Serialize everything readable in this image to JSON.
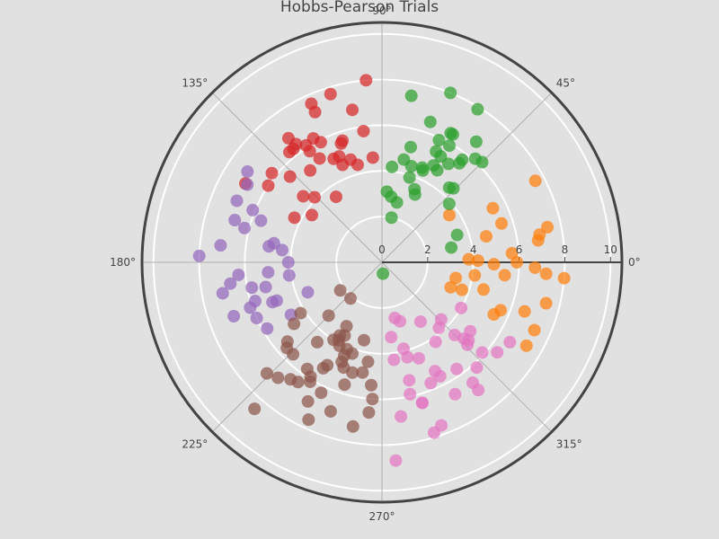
{
  "chart_data": {
    "type": "scatter",
    "subtype": "polar",
    "title": "Hobbs-Pearson Trials",
    "angular_ticks": [
      "0°",
      "45°",
      "90°",
      "135°",
      "180°",
      "225°",
      "270°",
      "315°"
    ],
    "radial_ticks": [
      "0",
      "2",
      "4",
      "6",
      "8",
      "10"
    ],
    "radial_range": [
      0,
      10.5
    ],
    "grid": true,
    "legend": "none",
    "colors": {
      "background": "#e1e1e1",
      "grid": "#ffffff",
      "axis": "#444444",
      "series": [
        "#ff7f0e",
        "#2ca02c",
        "#d62728",
        "#9467bd",
        "#8c564b",
        "#e377c2"
      ]
    },
    "series": [
      {
        "color": "#ff7f0e",
        "r": [
          7.6,
          3.6,
          5.5,
          7.4,
          8.0,
          4.1,
          6.7,
          5.4,
          3.8,
          7.4,
          3.2,
          5.6,
          6.6,
          4.6,
          7.3,
          3.3,
          5.4,
          6.9,
          7.2,
          5.7,
          4.2,
          7.0,
          4.9,
          3.7,
          5.4,
          7.3,
          4.7,
          5.9
        ],
        "theta": [
          28,
          35,
          18,
          12,
          -5,
          -8,
          -2,
          -6,
          2,
          -14,
          -20,
          -22,
          -19,
          -15,
          -30,
          -12,
          26,
          8,
          -4,
          4,
          1,
          10,
          -1,
          -19,
          -25,
          -24,
          14,
          0
        ]
      },
      {
        "color": "#2ca02c",
        "r": [
          8.0,
          7.9,
          6.7,
          6.2,
          5.9,
          5.2,
          4.7,
          4.4,
          3.5,
          3.1,
          2.0,
          4.6,
          5.2,
          6.5,
          7.4,
          5.5,
          4.5,
          3.9,
          3.3,
          4.8,
          5.9,
          4.4,
          6.4,
          5.7,
          6.1,
          6.4,
          4.4,
          5.4,
          3.5,
          3.9,
          2.9,
          3.1,
          2.7,
          4.2,
          5.3,
          4.5,
          0.5
        ],
        "theta": [
          68,
          58,
          52,
          45,
          65,
          56,
          59,
          48,
          20,
          12,
          78,
          78,
          76,
          71,
          80,
          52,
          67,
          41,
          64,
          62,
          60,
          73,
          61,
          52,
          48,
          62,
          66,
          64,
          66,
          72,
          82,
          86,
          76,
          84,
          61,
          46,
          -85
        ]
      },
      {
        "color": "#d62728",
        "r": [
          8.0,
          7.2,
          6.8,
          6.3,
          5.8,
          5.5,
          4.3,
          3.5,
          6.3,
          7.7,
          7.6,
          5.9,
          6.1,
          4.6,
          5.5,
          5.3,
          5.6,
          5.1,
          4.6,
          4.7,
          3.7,
          6.2,
          4.1,
          4.5,
          6.0,
          6.9,
          5.8,
          4.4,
          6.4,
          6.8,
          5.0,
          6.2,
          5.0
        ],
        "theta": [
          95,
          114,
          101,
          128,
          98,
          137,
          153,
          125,
          130,
          107,
          114,
          117,
          123,
          95,
          109,
          121,
          108,
          128,
          112,
          107,
          146,
          141,
          136,
          140,
          146,
          150,
          123,
          104,
          126,
          127,
          115,
          119,
          112
        ]
      },
      {
        "color": "#9467bd",
        "r": [
          8.0,
          6.9,
          6.7,
          6.2,
          7.1,
          6.7,
          6.3,
          5.8,
          5.2,
          5.0,
          4.8,
          4.4,
          4.1,
          5.6,
          6.1,
          7.1,
          6.8,
          6.1,
          5.8,
          5.1,
          4.1,
          3.5,
          4.6,
          5.8,
          4.9,
          6.0,
          6.9,
          7.1,
          5.0
        ],
        "theta": [
          178,
          157,
          164,
          166,
          174,
          188,
          185,
          191,
          192,
          172,
          170,
          173,
          180,
          161,
          158,
          146,
          150,
          199,
          197,
          200,
          188,
          202,
          210,
          210,
          200,
          204,
          200,
          191,
          185
        ]
      },
      {
        "color": "#8c564b",
        "r": [
          8.5,
          7.0,
          6.4,
          6.1,
          6.9,
          6.3,
          5.6,
          4.7,
          4.1,
          3.7,
          5.7,
          5.1,
          4.2,
          2.2,
          2.1,
          3.2,
          4.1,
          5.0,
          6.6,
          6.0,
          4.9,
          4.4,
          5.4,
          6.9,
          7.3,
          7.6,
          5.6,
          4.9,
          3.9,
          3.3,
          5.4,
          4.7,
          5.9,
          6.8,
          6.5,
          4.2,
          3.6,
          4.0,
          4.5,
          5.6,
          5.3,
          4.4,
          3.5
        ],
        "theta": [
          229,
          224,
          235,
          239,
          242,
          245,
          253,
          248,
          243,
          240,
          235,
          242,
          252,
          214,
          229,
          241,
          248,
          255,
          265,
          266,
          260,
          262,
          265,
          251,
          260,
          245,
          226,
          250,
          241,
          225,
          220,
          215,
          238,
          228,
          232,
          212,
          243,
          238,
          231,
          222,
          241,
          248,
          257
        ]
      },
      {
        "color": "#e377c2",
        "r": [
          8.7,
          7.8,
          6.8,
          6.4,
          5.9,
          5.3,
          4.5,
          3.9,
          3.3,
          2.7,
          2.5,
          4.3,
          5.7,
          6.6,
          7.0,
          6.2,
          5.7,
          5.2,
          4.5,
          3.8,
          3.6,
          4.0,
          4.2,
          5.6,
          6.4,
          7.6,
          6.6,
          5.1,
          4.9,
          3.1,
          6.4,
          5.9,
          6.6,
          4.9,
          4.3,
          5.3
        ],
        "theta": [
          274,
          287,
          277,
          286,
          282,
          296,
          291,
          284,
          277,
          287,
          283,
          277,
          292,
          299,
          307,
          312,
          305,
          316,
          315,
          311,
          316,
          330,
          304,
          297,
          286,
          290,
          307,
          318,
          322,
          303,
          322,
          318,
          328,
          317,
          285,
          283
        ]
      }
    ]
  }
}
